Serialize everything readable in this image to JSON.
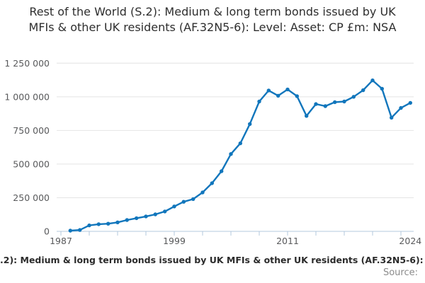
{
  "title": "Rest of the World (S.2): Medium & long term bonds issued by UK MFIs & other UK residents (AF.32N5-6): Level: Asset: CP £m: NSA",
  "footer": {
    "caption_visible": ".2): Medium & long term bonds issued by UK MFIs & other UK residents (AF.32N5-6): Le",
    "source_label": "Source:"
  },
  "colors": {
    "line": "#1176bc",
    "gridline": "#e4e4e4",
    "axis": "#b3c9de",
    "axis_label": "#58595b",
    "title_text": "#2e2e2e",
    "caption_text": "#2b2b2b",
    "source_text": "#8b8b8b"
  },
  "chart_data": {
    "type": "line",
    "title": "Rest of the World (S.2): Medium & long term bonds issued by UK MFIs & other UK residents (AF.32N5-6): Level: Asset: CP £m: NSA",
    "xlabel": "",
    "ylabel": "",
    "xlim": [
      1987,
      2024.5
    ],
    "ylim": [
      0,
      1250000
    ],
    "grid": "horizontal",
    "legend": "none",
    "markers": true,
    "x": [
      1988,
      1989,
      1990,
      1991,
      1992,
      1993,
      1994,
      1995,
      1996,
      1997,
      1998,
      1999,
      2000,
      2001,
      2002,
      2003,
      2004,
      2005,
      2006,
      2007,
      2008,
      2009,
      2010,
      2011,
      2012,
      2013,
      2014,
      2015,
      2016,
      2017,
      2018,
      2019,
      2020,
      2021,
      2022,
      2023,
      2024
    ],
    "values": [
      5000,
      10000,
      44000,
      53000,
      57000,
      67000,
      84000,
      98000,
      111000,
      126000,
      148000,
      185000,
      220000,
      240000,
      289000,
      358000,
      447000,
      575000,
      654000,
      798000,
      965000,
      1047000,
      1008000,
      1055000,
      1005000,
      858000,
      946000,
      931000,
      960000,
      965000,
      1000000,
      1049000,
      1122000,
      1060000,
      845000,
      917000,
      955000
    ],
    "y_ticks": [
      0,
      250000,
      500000,
      750000,
      1000000,
      1250000
    ],
    "y_tick_labels": [
      "0",
      "250 000",
      "500 000",
      "750 000",
      "1 000 000",
      "1 250 000"
    ],
    "x_minor_tick_years": [
      1987,
      1990,
      1993,
      1996,
      1999,
      2002,
      2005,
      2008,
      2011,
      2014,
      2017,
      2020,
      2023
    ],
    "x_labels": [
      {
        "year": 1987,
        "label": "1987"
      },
      {
        "year": 1999,
        "label": "1999"
      },
      {
        "year": 2011,
        "label": "2011"
      },
      {
        "year": 2024,
        "label": "2024"
      }
    ]
  }
}
